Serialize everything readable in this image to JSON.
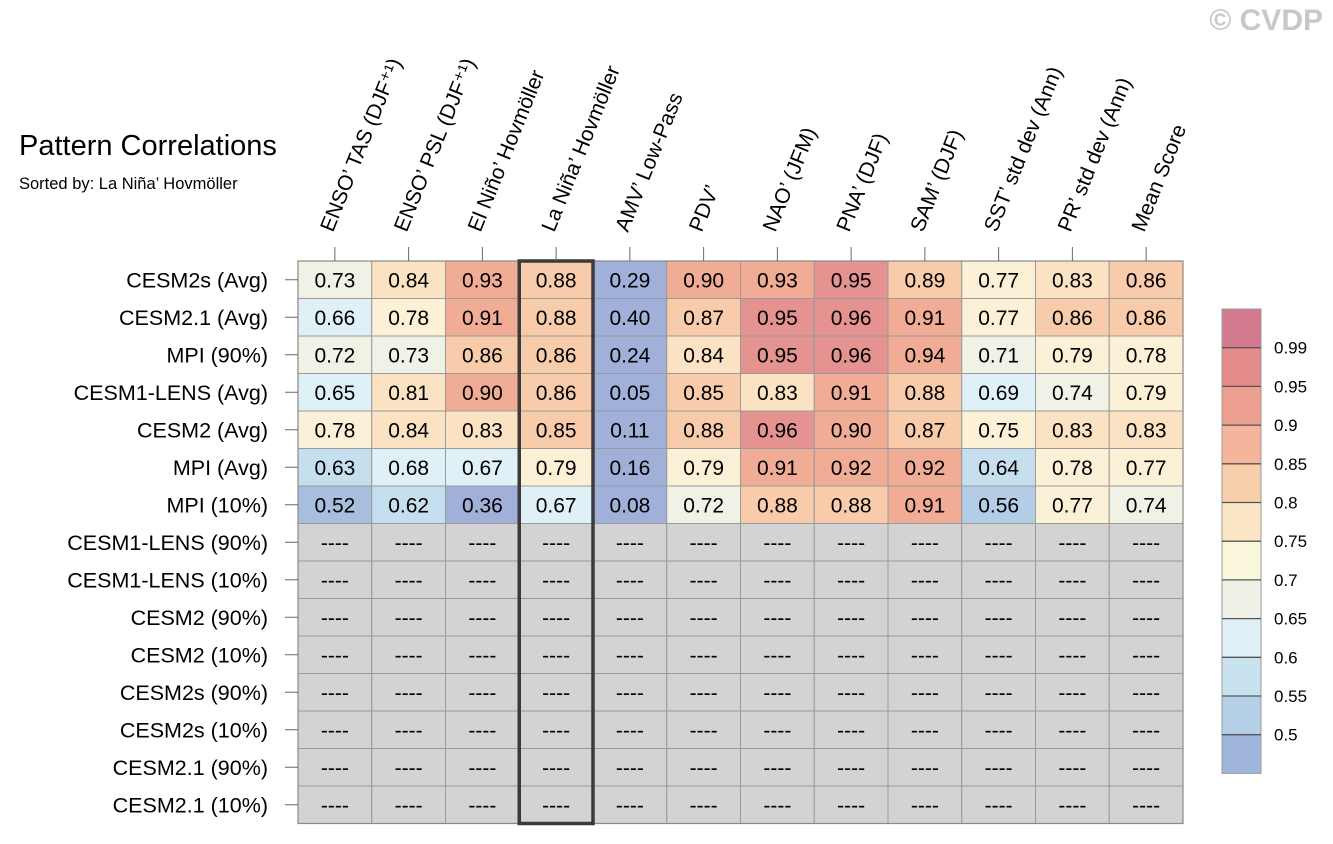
{
  "watermark": "© CVDP",
  "chart_data": {
    "type": "heatmap",
    "title": "Pattern Correlations",
    "subtitle": "Sorted by: La Niña’ Hovmöller",
    "columns": [
      "ENSO’ TAS (DJF⁺¹)",
      "ENSO’ PSL (DJF⁺¹)",
      "El Niño’ Hovmöller",
      "La Niña’ Hovmöller",
      "AMV’ Low-Pass",
      "PDV’",
      "NAO’ (JFM)",
      "PNA’ (DJF)",
      "SAM’ (DJF)",
      "SST’ std dev (Ann)",
      "PR’ std dev (Ann)",
      "Mean Score"
    ],
    "rows": [
      "CESM2s (Avg)",
      "CESM2.1 (Avg)",
      "MPI (90%)",
      "CESM1-LENS (Avg)",
      "CESM2 (Avg)",
      "MPI (Avg)",
      "MPI (10%)",
      "CESM1-LENS (90%)",
      "CESM1-LENS (10%)",
      "CESM2 (90%)",
      "CESM2 (10%)",
      "CESM2s (90%)",
      "CESM2s (10%)",
      "CESM2.1 (90%)",
      "CESM2.1 (10%)"
    ],
    "values": [
      [
        "0.73",
        "0.84",
        "0.93",
        "0.88",
        "0.29",
        "0.90",
        "0.93",
        "0.95",
        "0.89",
        "0.77",
        "0.83",
        "0.86"
      ],
      [
        "0.66",
        "0.78",
        "0.91",
        "0.88",
        "0.40",
        "0.87",
        "0.95",
        "0.96",
        "0.91",
        "0.77",
        "0.86",
        "0.86"
      ],
      [
        "0.72",
        "0.73",
        "0.86",
        "0.86",
        "0.24",
        "0.84",
        "0.95",
        "0.96",
        "0.94",
        "0.71",
        "0.79",
        "0.78"
      ],
      [
        "0.65",
        "0.81",
        "0.90",
        "0.86",
        "0.05",
        "0.85",
        "0.83",
        "0.91",
        "0.88",
        "0.69",
        "0.74",
        "0.79"
      ],
      [
        "0.78",
        "0.84",
        "0.83",
        "0.85",
        "0.11",
        "0.88",
        "0.96",
        "0.90",
        "0.87",
        "0.75",
        "0.83",
        "0.83"
      ],
      [
        "0.63",
        "0.68",
        "0.67",
        "0.79",
        "0.16",
        "0.79",
        "0.91",
        "0.92",
        "0.92",
        "0.64",
        "0.78",
        "0.77"
      ],
      [
        "0.52",
        "0.62",
        "0.36",
        "0.67",
        "0.08",
        "0.72",
        "0.88",
        "0.88",
        "0.91",
        "0.56",
        "0.77",
        "0.74"
      ],
      [
        "----",
        "----",
        "----",
        "----",
        "----",
        "----",
        "----",
        "----",
        "----",
        "----",
        "----",
        "----"
      ],
      [
        "----",
        "----",
        "----",
        "----",
        "----",
        "----",
        "----",
        "----",
        "----",
        "----",
        "----",
        "----"
      ],
      [
        "----",
        "----",
        "----",
        "----",
        "----",
        "----",
        "----",
        "----",
        "----",
        "----",
        "----",
        "----"
      ],
      [
        "----",
        "----",
        "----",
        "----",
        "----",
        "----",
        "----",
        "----",
        "----",
        "----",
        "----",
        "----"
      ],
      [
        "----",
        "----",
        "----",
        "----",
        "----",
        "----",
        "----",
        "----",
        "----",
        "----",
        "----",
        "----"
      ],
      [
        "----",
        "----",
        "----",
        "----",
        "----",
        "----",
        "----",
        "----",
        "----",
        "----",
        "----",
        "----"
      ],
      [
        "----",
        "----",
        "----",
        "----",
        "----",
        "----",
        "----",
        "----",
        "----",
        "----",
        "----",
        "----"
      ],
      [
        "----",
        "----",
        "----",
        "----",
        "----",
        "----",
        "----",
        "----",
        "----",
        "----",
        "----",
        "----"
      ]
    ],
    "highlight_column": 3,
    "missing_color": "#d3d3d3",
    "colorbar": {
      "labels": [
        "0.99",
        "0.95",
        "0.9",
        "0.85",
        "0.8",
        "0.75",
        "0.7",
        "0.65",
        "0.6",
        "0.55",
        "0.5"
      ],
      "colors": [
        "#d47a8f",
        "#e48c8b",
        "#eda08f",
        "#f5b59c",
        "#f8cfab",
        "#fae6c4",
        "#f9f6dc",
        "#f0f1e6",
        "#dff0f6",
        "#c9e2ef",
        "#b5d0e6",
        "#9fb5dc"
      ]
    },
    "cell_colors": {
      "below_0.5": "#a0b0d8",
      "0.50_0.55": "#a7bedf",
      "0.55_0.60": "#b4cde6",
      "0.60_0.65": "#c6dfef",
      "0.65_0.70": "#dff0f7",
      "0.70_0.75": "#f1f2e6",
      "0.75_0.80": "#fcf1d6",
      "0.80_0.85": "#fbe2c2",
      "0.85_0.90": "#f8ccaa",
      "0.90_0.95": "#f1ac96",
      "0.95_0.99": "#e49391",
      "above_0.99": "#d47a8f"
    }
  }
}
